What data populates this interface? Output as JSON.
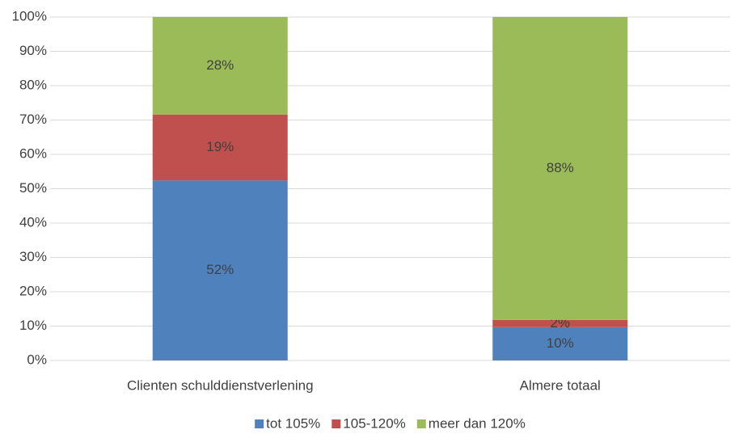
{
  "chart_data": {
    "type": "stacked_bar",
    "categories": [
      "Clienten schulddienstverlening",
      "Almere totaal"
    ],
    "series": [
      {
        "name": "tot 105%",
        "color": "#4f81bd",
        "values": [
          52.4,
          9.7
        ],
        "value_labels": [
          "52%",
          "10%"
        ]
      },
      {
        "name": "105-120%",
        "color": "#c0504d",
        "values": [
          19.2,
          2.1
        ],
        "value_labels": [
          "19%",
          "2%"
        ]
      },
      {
        "name": "meer dan 120%",
        "color": "#9bbb59",
        "values": [
          28.4,
          88.2
        ],
        "value_labels": [
          "28%",
          "88%"
        ]
      }
    ],
    "ylim": [
      0,
      100
    ],
    "yticks": [
      {
        "value": 0,
        "label": "0%"
      },
      {
        "value": 10,
        "label": "10%"
      },
      {
        "value": 20,
        "label": "20%"
      },
      {
        "value": 30,
        "label": "30%"
      },
      {
        "value": 40,
        "label": "40%"
      },
      {
        "value": 50,
        "label": "50%"
      },
      {
        "value": 60,
        "label": "60%"
      },
      {
        "value": 70,
        "label": "70%"
      },
      {
        "value": 80,
        "label": "80%"
      },
      {
        "value": 90,
        "label": "90%"
      },
      {
        "value": 100,
        "label": "100%"
      }
    ],
    "grid": true,
    "legend": "bottom"
  }
}
